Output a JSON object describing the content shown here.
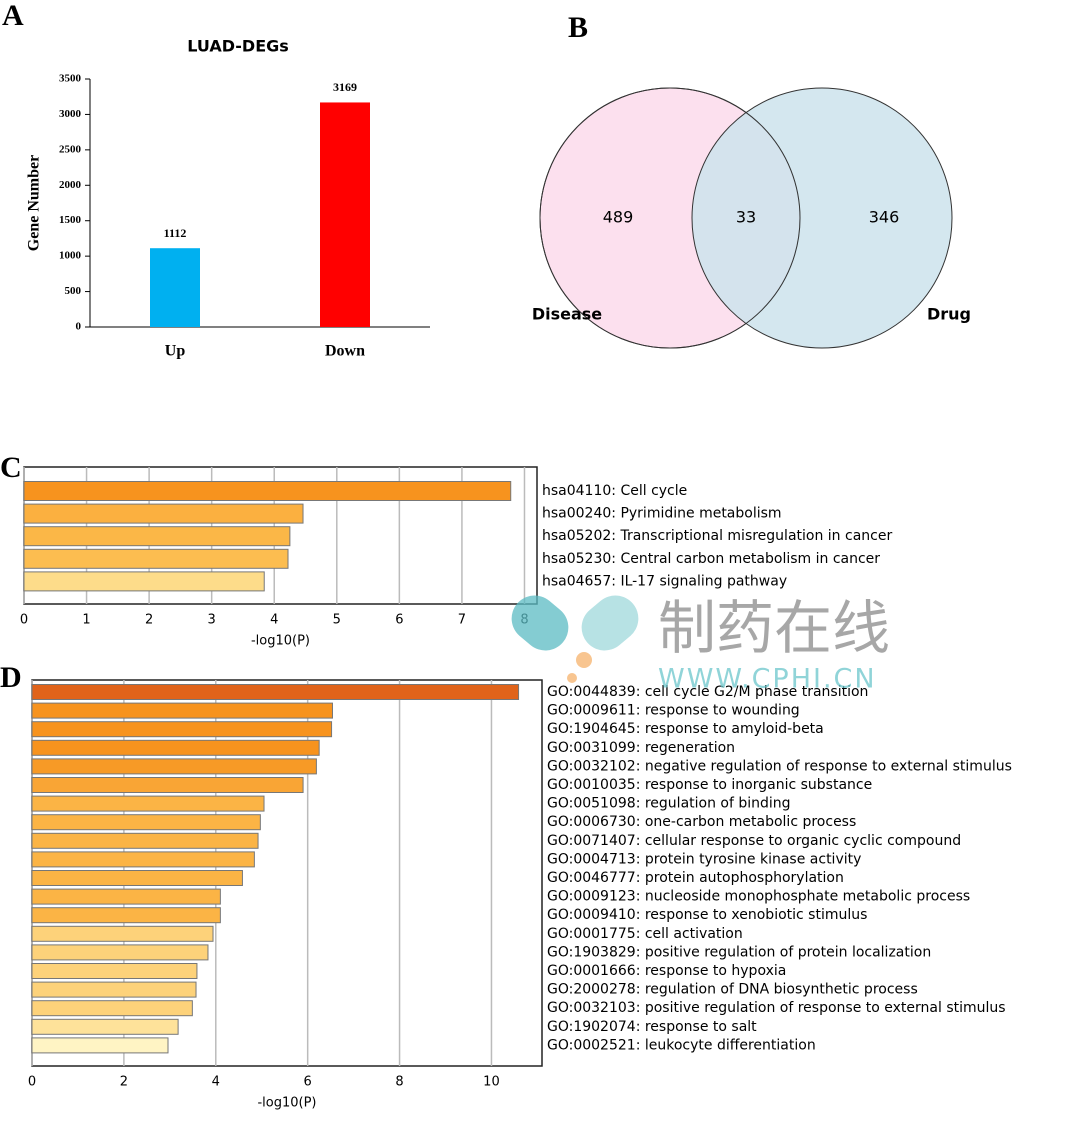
{
  "chart_data": [
    {
      "type": "bar",
      "panel_label": "A",
      "title": "LUAD-DEGs",
      "y_label": "Gene Number",
      "categories": [
        "Up",
        "Down"
      ],
      "values": [
        1112,
        3169
      ],
      "colors": [
        "#00b0f0",
        "#ff0000"
      ],
      "ylim": [
        0,
        3500
      ],
      "yticks": [
        0,
        500,
        1000,
        1500,
        2000,
        2500,
        3000,
        3500
      ]
    },
    {
      "type": "venn",
      "panel_label": "B",
      "sets": [
        {
          "name": "Disease",
          "value": 489,
          "color": "#fce0ee"
        },
        {
          "name": "Drug",
          "value": 346,
          "color": "#cde3ec"
        }
      ],
      "overlap": 33
    },
    {
      "type": "barh",
      "panel_label": "C",
      "x_label": "-log10(P)",
      "grid": true,
      "categories": [
        "hsa04110: Cell cycle",
        "hsa00240: Pyrimidine metabolism",
        "hsa05202: Transcriptional misregulation in cancer",
        "hsa05230: Central carbon metabolism in cancer",
        "hsa04657: IL-17 signaling pathway"
      ],
      "values": [
        7.78,
        4.46,
        4.25,
        4.22,
        3.84
      ],
      "colors": [
        "#f7931e",
        "#fbb040",
        "#fbb747",
        "#fcbd50",
        "#fddc8a"
      ],
      "xlim": [
        0,
        8.2
      ],
      "xticks": [
        0,
        1,
        2,
        3,
        4,
        5,
        6,
        7,
        8
      ]
    },
    {
      "type": "barh",
      "panel_label": "D",
      "x_label": "-log10(P)",
      "grid": true,
      "categories": [
        "GO:0044839: cell cycle G2/M phase transition",
        "GO:0009611: response to wounding",
        "GO:1904645: response to amyloid-beta",
        "GO:0031099: regeneration",
        "GO:0032102: negative regulation of response to external stimulus",
        "GO:0010035: response to inorganic substance",
        "GO:0051098: regulation of binding",
        "GO:0006730: one-carbon metabolic process",
        "GO:0071407: cellular response to organic cyclic compound",
        "GO:0004713: protein tyrosine kinase activity",
        "GO:0046777: protein autophosphorylation",
        "GO:0009123: nucleoside monophosphate metabolic process",
        "GO:0009410: response to xenobiotic stimulus",
        "GO:0001775: cell activation",
        "GO:1903829: positive regulation of protein localization",
        "GO:0001666: response to hypoxia",
        "GO:2000278: regulation of DNA biosynthetic process",
        "GO:0032103: positive regulation of response to external stimulus",
        "GO:1902074: response to salt",
        "GO:0002521: leukocyte differentiation"
      ],
      "values": [
        10.59,
        6.54,
        6.52,
        6.25,
        6.19,
        5.9,
        5.05,
        4.97,
        4.92,
        4.84,
        4.58,
        4.1,
        4.1,
        3.94,
        3.83,
        3.59,
        3.57,
        3.49,
        3.18,
        2.96
      ],
      "colors": [
        "#e0631a",
        "#f7931e",
        "#f7931e",
        "#f7931e",
        "#f79a26",
        "#f9a535",
        "#fbb445",
        "#fbb445",
        "#fbb445",
        "#fbb445",
        "#fbb445",
        "#fbb445",
        "#fbb445",
        "#fdd27a",
        "#fdd27a",
        "#fdd27a",
        "#fdd27a",
        "#fdd27a",
        "#fee29a",
        "#fff4c4"
      ],
      "xlim": [
        0,
        11.1
      ],
      "xticks": [
        0,
        2,
        4,
        6,
        8,
        10
      ]
    }
  ],
  "watermark": {
    "text": "制药在线",
    "url": "WWW.CPHI.CN"
  }
}
